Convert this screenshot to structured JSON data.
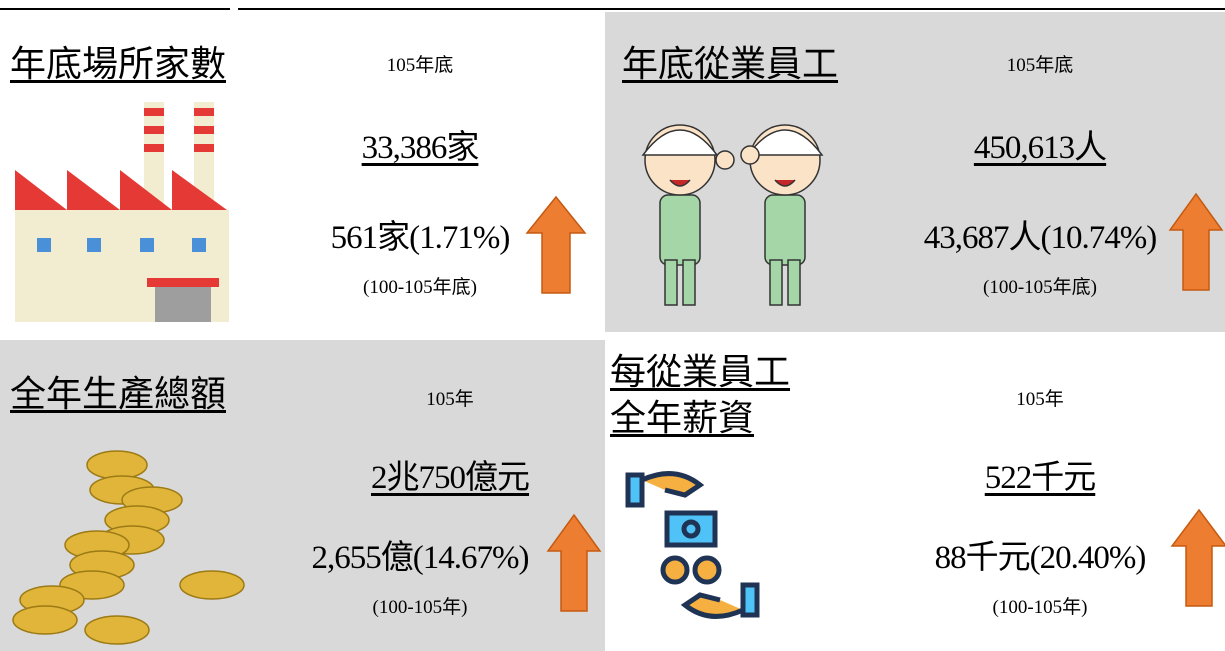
{
  "panels": [
    {
      "title_lines": [
        "年底場所家數"
      ],
      "period_label": "105年底",
      "value": "33,386家",
      "change": "561家(1.71%)",
      "change_period": "(100-105年底)"
    },
    {
      "title_lines": [
        "年底從業員工"
      ],
      "period_label": "105年底",
      "value": "450,613人",
      "change": "43,687人(10.74%)",
      "change_period": "(100-105年底)"
    },
    {
      "title_lines": [
        "全年生產總額"
      ],
      "period_label": "105年",
      "value": "2兆750億元",
      "change": "2,655億(14.67%)",
      "change_period": "(100-105年)"
    },
    {
      "title_lines": [
        "每從業員工",
        "全年薪資"
      ],
      "period_label": "105年",
      "value": "522千元",
      "change": "88千元(20.40%)",
      "change_period": "(100-105年)"
    }
  ]
}
